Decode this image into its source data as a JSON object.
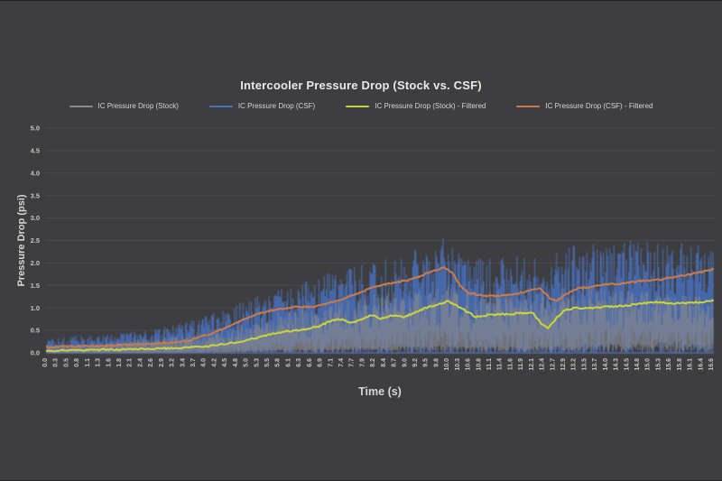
{
  "page": {
    "background": "#3e3e40"
  },
  "chart_data": {
    "type": "line",
    "title": "Intercooler Pressure Drop (Stock vs. CSF)",
    "xlabel": "Time (s)",
    "ylabel": "Pressure Drop (psi)",
    "ylim": [
      0.0,
      5.0
    ],
    "ytick_labels": [
      "0.0",
      "0.5",
      "1.0",
      "1.5",
      "2.0",
      "2.5",
      "3.0",
      "3.5",
      "4.0",
      "4.5",
      "5.0"
    ],
    "xlim": [
      0.0,
      16.6
    ],
    "xtick_labels": [
      "0.0",
      "0.3",
      "0.5",
      "0.8",
      "1.1",
      "1.3",
      "1.6",
      "1.8",
      "2.1",
      "2.4",
      "2.6",
      "2.9",
      "3.2",
      "3.4",
      "3.7",
      "4.0",
      "4.2",
      "4.5",
      "4.8",
      "5.0",
      "5.3",
      "5.5",
      "5.8",
      "6.1",
      "6.3",
      "6.6",
      "6.9",
      "7.1",
      "7.4",
      "7.7",
      "7.9",
      "8.2",
      "8.4",
      "8.7",
      "9.0",
      "9.2",
      "9.5",
      "9.8",
      "10.0",
      "10.3",
      "10.6",
      "10.8",
      "11.1",
      "11.4",
      "11.6",
      "11.9",
      "12.1",
      "12.4",
      "12.7",
      "12.9",
      "13.2",
      "13.5",
      "13.7",
      "14.0",
      "14.3",
      "14.5",
      "14.8",
      "15.0",
      "15.3",
      "15.6",
      "15.8",
      "16.1",
      "16.4",
      "16.6"
    ],
    "grid": "horizontal-only",
    "legend_position": "top",
    "background_color": "#3e3e40",
    "gridline_color": "#4c4c50",
    "text_color": "#c4c4c4",
    "noise_seed": 1337,
    "series": [
      {
        "name": "IC Pressure Drop (Stock)",
        "color": "#8a8a8e",
        "style": "raw-noise",
        "opacity": 0.7,
        "envelope": [
          [
            0,
            0.0,
            0.2
          ],
          [
            1,
            0.0,
            0.22
          ],
          [
            2,
            0.0,
            0.28
          ],
          [
            3,
            0.0,
            0.35
          ],
          [
            4,
            0.02,
            0.5
          ],
          [
            5,
            0.05,
            0.7
          ],
          [
            6,
            0.08,
            0.95
          ],
          [
            7,
            0.1,
            1.15
          ],
          [
            8,
            0.12,
            1.3
          ],
          [
            9,
            0.15,
            1.4
          ],
          [
            10,
            0.18,
            1.5
          ],
          [
            10.8,
            0.15,
            1.35
          ],
          [
            11.5,
            0.15,
            1.4
          ],
          [
            12.5,
            0.15,
            1.45
          ],
          [
            13.5,
            0.2,
            1.5
          ],
          [
            14.5,
            0.2,
            1.4
          ],
          [
            15.5,
            0.25,
            1.35
          ],
          [
            16.6,
            0.28,
            1.3
          ]
        ]
      },
      {
        "name": "IC Pressure Drop (CSF)",
        "color": "#4a72c2",
        "style": "raw-noise",
        "opacity": 0.85,
        "baseline_line": true,
        "envelope": [
          [
            0,
            0.0,
            0.35
          ],
          [
            1,
            0.0,
            0.4
          ],
          [
            2,
            0.02,
            0.45
          ],
          [
            3,
            0.05,
            0.6
          ],
          [
            3.7,
            0.08,
            0.75
          ],
          [
            4.5,
            0.12,
            1.0
          ],
          [
            5,
            0.18,
            1.2
          ],
          [
            5.5,
            0.22,
            1.35
          ],
          [
            6,
            0.28,
            1.5
          ],
          [
            6.5,
            0.3,
            1.6
          ],
          [
            7,
            0.35,
            1.8
          ],
          [
            7.5,
            0.38,
            1.9
          ],
          [
            8,
            0.4,
            2.0
          ],
          [
            8.5,
            0.45,
            2.1
          ],
          [
            9,
            0.5,
            2.2
          ],
          [
            9.5,
            0.55,
            2.45
          ],
          [
            9.8,
            0.6,
            2.7
          ],
          [
            10.2,
            0.5,
            2.3
          ],
          [
            10.8,
            0.45,
            2.1
          ],
          [
            11.5,
            0.5,
            2.15
          ],
          [
            12,
            0.5,
            2.2
          ],
          [
            12.5,
            0.45,
            2.25
          ],
          [
            13,
            0.5,
            2.4
          ],
          [
            13.5,
            0.55,
            2.45
          ],
          [
            14,
            0.55,
            2.5
          ],
          [
            15,
            0.6,
            2.5
          ],
          [
            16,
            0.6,
            2.55
          ],
          [
            16.6,
            0.6,
            2.4
          ]
        ]
      },
      {
        "name": "IC Pressure Drop (Stock) - Filtered",
        "color": "#c9d13c",
        "style": "smooth",
        "points": [
          [
            0,
            0.05
          ],
          [
            0.5,
            0.05
          ],
          [
            1,
            0.06
          ],
          [
            1.5,
            0.07
          ],
          [
            2,
            0.08
          ],
          [
            2.5,
            0.09
          ],
          [
            3,
            0.1
          ],
          [
            3.5,
            0.12
          ],
          [
            4,
            0.15
          ],
          [
            4.5,
            0.2
          ],
          [
            5,
            0.28
          ],
          [
            5.3,
            0.35
          ],
          [
            5.6,
            0.42
          ],
          [
            6,
            0.48
          ],
          [
            6.4,
            0.52
          ],
          [
            6.8,
            0.6
          ],
          [
            7.1,
            0.72
          ],
          [
            7.35,
            0.75
          ],
          [
            7.6,
            0.66
          ],
          [
            7.9,
            0.78
          ],
          [
            8.1,
            0.84
          ],
          [
            8.3,
            0.76
          ],
          [
            8.6,
            0.84
          ],
          [
            8.9,
            0.8
          ],
          [
            9.2,
            0.9
          ],
          [
            9.5,
            1.02
          ],
          [
            9.8,
            1.1
          ],
          [
            10.0,
            1.15
          ],
          [
            10.2,
            1.05
          ],
          [
            10.45,
            0.92
          ],
          [
            10.7,
            0.8
          ],
          [
            11,
            0.84
          ],
          [
            11.4,
            0.86
          ],
          [
            11.8,
            0.88
          ],
          [
            12.1,
            0.9
          ],
          [
            12.35,
            0.62
          ],
          [
            12.5,
            0.55
          ],
          [
            12.7,
            0.78
          ],
          [
            12.9,
            0.95
          ],
          [
            13.2,
            1.0
          ],
          [
            13.6,
            1.0
          ],
          [
            14,
            1.03
          ],
          [
            14.4,
            1.05
          ],
          [
            14.8,
            1.1
          ],
          [
            15.2,
            1.13
          ],
          [
            15.6,
            1.1
          ],
          [
            16,
            1.12
          ],
          [
            16.3,
            1.13
          ],
          [
            16.6,
            1.15
          ]
        ]
      },
      {
        "name": "IC Pressure Drop (CSF) - Filtered",
        "color": "#c87a4a",
        "style": "smooth",
        "points": [
          [
            0,
            0.13
          ],
          [
            0.5,
            0.14
          ],
          [
            1,
            0.15
          ],
          [
            1.5,
            0.16
          ],
          [
            2,
            0.18
          ],
          [
            2.5,
            0.2
          ],
          [
            3,
            0.22
          ],
          [
            3.5,
            0.27
          ],
          [
            4,
            0.4
          ],
          [
            4.3,
            0.5
          ],
          [
            4.6,
            0.62
          ],
          [
            5,
            0.78
          ],
          [
            5.3,
            0.88
          ],
          [
            5.6,
            0.95
          ],
          [
            6,
            1.0
          ],
          [
            6.3,
            1.03
          ],
          [
            6.6,
            1.02
          ],
          [
            7,
            1.1
          ],
          [
            7.3,
            1.18
          ],
          [
            7.6,
            1.28
          ],
          [
            8,
            1.42
          ],
          [
            8.3,
            1.5
          ],
          [
            8.6,
            1.55
          ],
          [
            9,
            1.62
          ],
          [
            9.3,
            1.7
          ],
          [
            9.6,
            1.82
          ],
          [
            9.9,
            1.9
          ],
          [
            10.1,
            1.78
          ],
          [
            10.3,
            1.5
          ],
          [
            10.5,
            1.33
          ],
          [
            10.8,
            1.28
          ],
          [
            11.2,
            1.27
          ],
          [
            11.6,
            1.3
          ],
          [
            12,
            1.38
          ],
          [
            12.3,
            1.43
          ],
          [
            12.55,
            1.2
          ],
          [
            12.7,
            1.15
          ],
          [
            12.9,
            1.28
          ],
          [
            13.2,
            1.42
          ],
          [
            13.6,
            1.48
          ],
          [
            14,
            1.52
          ],
          [
            14.4,
            1.55
          ],
          [
            14.8,
            1.6
          ],
          [
            15.2,
            1.62
          ],
          [
            15.6,
            1.68
          ],
          [
            16,
            1.75
          ],
          [
            16.3,
            1.8
          ],
          [
            16.6,
            1.85
          ]
        ]
      }
    ]
  }
}
